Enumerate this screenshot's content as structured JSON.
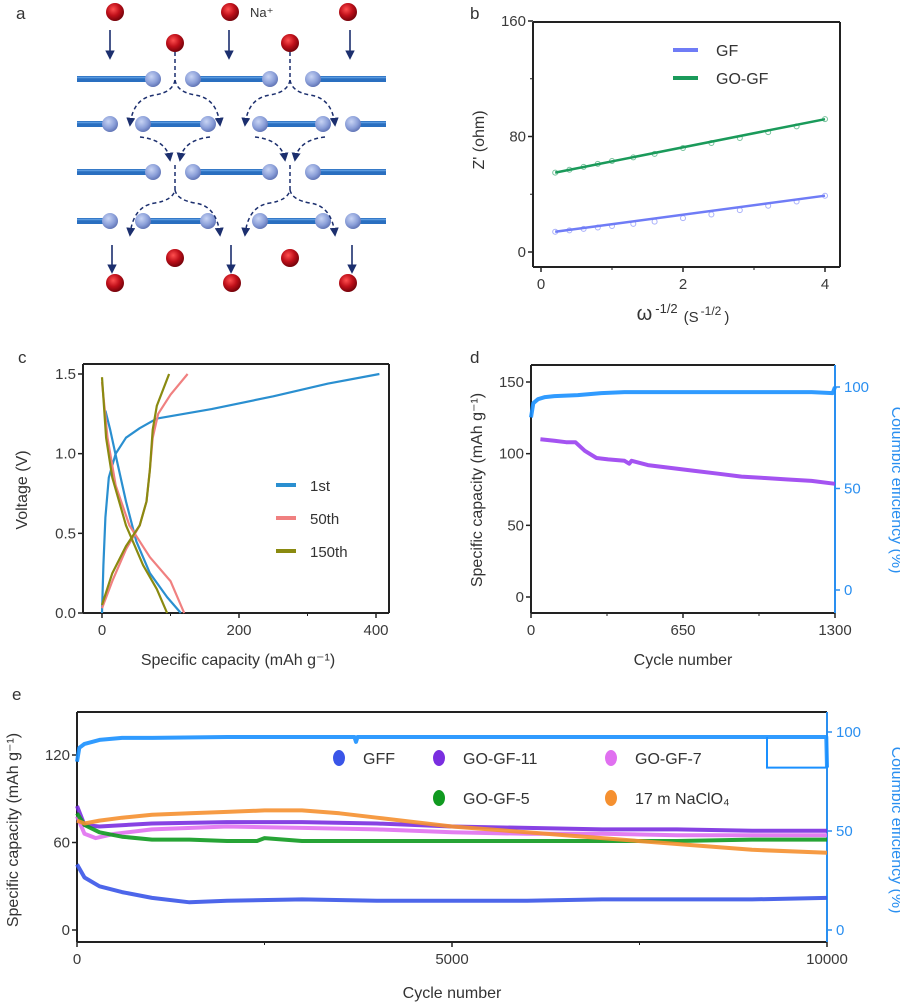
{
  "panels": {
    "a": {
      "label": "a",
      "ion_label": "Na⁺"
    },
    "b": {
      "label": "b"
    },
    "c": {
      "label": "c"
    },
    "d": {
      "label": "d"
    },
    "e": {
      "label": "e"
    }
  },
  "colors": {
    "na_ion": "#c0101a",
    "sheet": "#2a6fc0",
    "sheet_atom": "#8a9ed8",
    "arrow": "#1c2f6e"
  },
  "chart_data": [
    {
      "id": "b",
      "type": "line",
      "title": "",
      "xlabel": {
        "main": "ω",
        "sup": "-1/2",
        "unit": "(S",
        "unit_sup": "-1/2",
        "close": ")"
      },
      "ylabel": "Z' (ohm)",
      "xlim": [
        0,
        4
      ],
      "ylim": [
        0,
        160
      ],
      "xticks": {
        "values": [
          0,
          2,
          4
        ],
        "labels": [
          "0",
          "2",
          "4"
        ],
        "minor": [
          1,
          3
        ]
      },
      "yticks": {
        "values": [
          0,
          80,
          160
        ],
        "labels": [
          "0",
          "80",
          "160"
        ],
        "minor": [
          40,
          120
        ]
      },
      "legend": "top-right",
      "series": [
        {
          "name": "GF",
          "color": "#6f7cf6",
          "x": [
            0.2,
            0.4,
            0.6,
            0.8,
            1.0,
            1.3,
            1.6,
            2.0,
            2.4,
            2.8,
            3.2,
            3.6,
            4.0
          ],
          "y": [
            14,
            15,
            16,
            17,
            18,
            19.5,
            21,
            23.5,
            26,
            29,
            32,
            35,
            39
          ]
        },
        {
          "name": "GO-GF",
          "color": "#1a9a5a",
          "x": [
            0.2,
            0.4,
            0.6,
            0.8,
            1.0,
            1.3,
            1.6,
            2.0,
            2.4,
            2.8,
            3.2,
            3.6,
            4.0
          ],
          "y": [
            55,
            57,
            59,
            61,
            63,
            65.5,
            68,
            72,
            75.5,
            79,
            83,
            87,
            92
          ]
        }
      ]
    },
    {
      "id": "c",
      "type": "line",
      "xlabel": "Specific capacity (mAh g⁻¹)",
      "ylabel": "Voltage (V)",
      "xlim": [
        -30,
        410
      ],
      "ylim": [
        0,
        1.53
      ],
      "xticks": {
        "values": [
          0,
          200,
          400
        ],
        "labels": [
          "0",
          "200",
          "400"
        ],
        "minor": [
          100,
          300
        ]
      },
      "yticks": {
        "values": [
          0,
          0.5,
          1.0,
          1.5
        ],
        "labels": [
          "0.0",
          "0.5",
          "1.0",
          "1.5"
        ],
        "minor": []
      },
      "legend": "center-right",
      "series": [
        {
          "name": "1st",
          "color": "#2a8fd0",
          "segments": [
            [
              [
                0,
                0
              ],
              [
                2,
                0.3
              ],
              [
                5,
                0.6
              ],
              [
                10,
                0.85
              ],
              [
                20,
                1.0
              ],
              [
                35,
                1.1
              ],
              [
                55,
                1.16
              ],
              [
                80,
                1.22
              ],
              [
                120,
                1.25
              ],
              [
                160,
                1.28
              ],
              [
                250,
                1.36
              ],
              [
                330,
                1.44
              ],
              [
                405,
                1.5
              ]
            ],
            [
              [
                5,
                1.27
              ],
              [
                12,
                1.15
              ],
              [
                22,
                0.95
              ],
              [
                35,
                0.7
              ],
              [
                50,
                0.45
              ],
              [
                70,
                0.25
              ],
              [
                95,
                0.1
              ],
              [
                115,
                0
              ]
            ]
          ]
        },
        {
          "name": "50th",
          "color": "#f08080",
          "segments": [
            [
              [
                0,
                0.03
              ],
              [
                15,
                0.2
              ],
              [
                35,
                0.4
              ],
              [
                55,
                0.55
              ],
              [
                65,
                0.7
              ],
              [
                70,
                0.9
              ],
              [
                74,
                1.1
              ],
              [
                82,
                1.25
              ],
              [
                100,
                1.37
              ],
              [
                125,
                1.5
              ]
            ],
            [
              [
                0,
                1.45
              ],
              [
                8,
                1.1
              ],
              [
                20,
                0.8
              ],
              [
                40,
                0.55
              ],
              [
                70,
                0.35
              ],
              [
                100,
                0.2
              ],
              [
                120,
                0
              ]
            ]
          ]
        },
        {
          "name": "150th",
          "color": "#8a8a10",
          "segments": [
            [
              [
                0,
                0.05
              ],
              [
                15,
                0.25
              ],
              [
                35,
                0.42
              ],
              [
                55,
                0.55
              ],
              [
                65,
                0.7
              ],
              [
                70,
                0.9
              ],
              [
                74,
                1.15
              ],
              [
                80,
                1.3
              ],
              [
                98,
                1.5
              ]
            ],
            [
              [
                0,
                1.48
              ],
              [
                6,
                1.1
              ],
              [
                15,
                0.85
              ],
              [
                35,
                0.55
              ],
              [
                60,
                0.3
              ],
              [
                80,
                0.15
              ],
              [
                95,
                0
              ]
            ]
          ]
        }
      ]
    },
    {
      "id": "d",
      "type": "line",
      "xlabel": "Cycle number",
      "ylabel": "Specific capacity (mAh g⁻¹)",
      "y2label": "Columbic efficiency (%)",
      "xlim": [
        0,
        1300
      ],
      "ylim": [
        -11,
        162
      ],
      "y2lim": [
        -11,
        111
      ],
      "xticks": {
        "values": [
          0,
          650,
          1300
        ],
        "labels": [
          "0",
          "650",
          "1300"
        ],
        "minor": [
          325,
          975
        ]
      },
      "yticks": {
        "values": [
          0,
          50,
          100,
          150
        ],
        "labels": [
          "0",
          "50",
          "100",
          "150"
        ],
        "minor": []
      },
      "y2ticks": {
        "values": [
          0,
          50,
          100
        ],
        "labels": [
          "0",
          "50",
          "100"
        ]
      },
      "series": [
        {
          "name": "Specific capacity",
          "axis": "left",
          "color": "#9a40f0",
          "x": [
            40,
            100,
            150,
            190,
            230,
            280,
            330,
            400,
            420,
            430,
            500,
            600,
            700,
            800,
            900,
            1000,
            1100,
            1200,
            1300
          ],
          "y": [
            110,
            109,
            108,
            108,
            102,
            97,
            96,
            95,
            93,
            95,
            92,
            90,
            88,
            86,
            84,
            83,
            82,
            81,
            79
          ]
        },
        {
          "name": "Columbic efficiency",
          "axis": "right",
          "color": "#1a90ff",
          "x": [
            0,
            10,
            30,
            60,
            100,
            200,
            300,
            400,
            600,
            800,
            1000,
            1200,
            1290,
            1300
          ],
          "y": [
            85,
            92,
            94,
            95,
            95.5,
            96,
            97,
            97.5,
            97.5,
            97.5,
            97.5,
            97.5,
            97,
            100
          ]
        }
      ]
    },
    {
      "id": "e",
      "type": "line",
      "xlabel": "Cycle number",
      "ylabel": "Specific capacity (mAh g⁻¹)",
      "y2label": "Columbic efficiency (%)",
      "xlim": [
        0,
        10000
      ],
      "ylim": [
        -8,
        150
      ],
      "y2lim": [
        -6,
        110
      ],
      "xticks": {
        "values": [
          0,
          5000,
          10000
        ],
        "labels": [
          "0",
          "5000",
          "10000"
        ],
        "minor": [
          2500,
          7500
        ]
      },
      "yticks": {
        "values": [
          0,
          60,
          120
        ],
        "labels": [
          "0",
          "60",
          "120"
        ],
        "minor": []
      },
      "y2ticks": {
        "values": [
          0,
          50,
          100
        ],
        "labels": [
          "0",
          "50",
          "100"
        ]
      },
      "legend": "top-right",
      "series": [
        {
          "name": "GFF",
          "axis": "left",
          "color": "#3a55e8",
          "x": [
            0,
            100,
            300,
            600,
            1000,
            1500,
            2000,
            3000,
            4000,
            5000,
            6000,
            7000,
            8000,
            9000,
            10000
          ],
          "y": [
            45,
            36,
            30,
            26,
            22,
            19,
            20,
            21,
            20,
            20,
            20,
            21,
            21,
            21,
            22
          ]
        },
        {
          "name": "GO-GF-11",
          "axis": "left",
          "color": "#7a2ee0",
          "x": [
            0,
            100,
            300,
            1000,
            2000,
            3000,
            4000,
            5000,
            6000,
            7000,
            8000,
            9000,
            10000
          ],
          "y": [
            85,
            72,
            71,
            73,
            74,
            74,
            73,
            71,
            70,
            69,
            69,
            68,
            68
          ]
        },
        {
          "name": "GO-GF-7",
          "axis": "left",
          "color": "#e070f0",
          "x": [
            0,
            100,
            250,
            500,
            1000,
            2000,
            3000,
            4000,
            5000,
            6000,
            7000,
            8000,
            9000,
            10000
          ],
          "y": [
            78,
            66,
            63,
            66,
            69,
            71,
            70,
            69,
            67,
            66,
            66,
            65,
            65,
            65
          ]
        },
        {
          "name": "GO-GF-5",
          "axis": "left",
          "color": "#109a20",
          "x": [
            0,
            100,
            300,
            600,
            1000,
            1500,
            2000,
            2400,
            2500,
            3000,
            4000,
            5000,
            6000,
            7000,
            8000,
            9000,
            10000
          ],
          "y": [
            80,
            72,
            67,
            64,
            62,
            62,
            61,
            61,
            63,
            61,
            61,
            61,
            61,
            61,
            61,
            62,
            62
          ]
        },
        {
          "name": "17 m NaClO₄",
          "axis": "left",
          "color": "#f59030",
          "x": [
            0,
            100,
            300,
            600,
            1000,
            1500,
            2000,
            2500,
            3000,
            3500,
            4000,
            4500,
            5000,
            5500,
            6000,
            7000,
            8000,
            9000,
            10000
          ],
          "y": [
            75,
            73,
            75,
            77,
            79,
            80,
            81,
            82,
            82,
            80,
            77,
            74,
            71,
            69,
            67,
            63,
            59,
            55,
            53
          ]
        },
        {
          "name": "Columbic efficiency",
          "axis": "right",
          "color": "#1a90ff",
          "x": [
            0,
            30,
            100,
            300,
            600,
            1000,
            2000,
            3000,
            3700,
            3720,
            3740,
            5000,
            7000,
            9000,
            9990,
            10000
          ],
          "y": [
            85,
            92,
            94,
            96,
            97,
            97,
            97.5,
            97.5,
            97.5,
            95,
            97.5,
            97.5,
            97.5,
            97.5,
            97.5,
            82
          ],
          "marker_line": {
            "x": [
              9200,
              9200,
              10000
            ],
            "y": [
              97.5,
              82,
              82
            ]
          }
        }
      ]
    }
  ]
}
